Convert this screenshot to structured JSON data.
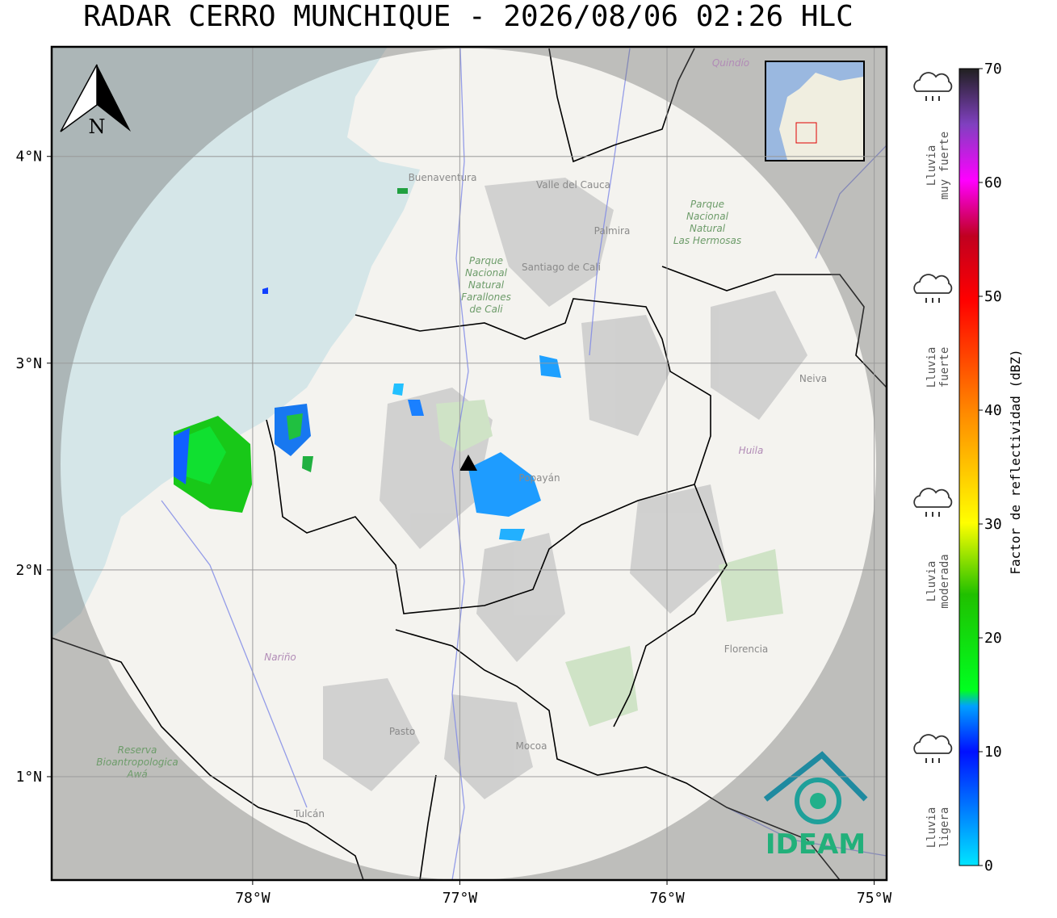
{
  "title": "RADAR CERRO MUNCHIQUE - 2026/08/06 02:26 HLC",
  "map": {
    "xlim": [
      -78.97,
      -74.94
    ],
    "ylim": [
      0.5,
      4.53
    ],
    "lon_ticks": [
      {
        "value": -78,
        "label": "78°W"
      },
      {
        "value": -77,
        "label": "77°W"
      },
      {
        "value": -76,
        "label": "76°W"
      },
      {
        "value": -75,
        "label": "75°W"
      }
    ],
    "lat_ticks": [
      {
        "value": 1,
        "label": "1°N"
      },
      {
        "value": 2,
        "label": "2°N"
      },
      {
        "value": 3,
        "label": "3°N"
      },
      {
        "value": 4,
        "label": "4°N"
      }
    ],
    "north_label": "N",
    "places": [
      "Buenaventura",
      "Valle del Cauca",
      "Santiago de Cali",
      "Palmira",
      "Popayán",
      "Neiva",
      "Huila",
      "Nariño",
      "Pasto",
      "Mocoa",
      "Florencia",
      "Tulcán",
      "Quindío"
    ],
    "parks": [
      [
        "Parque",
        "Nacional",
        "Natural",
        "Farallones",
        "de Cali"
      ],
      [
        "Parque",
        "Nacional",
        "Natural",
        "Las Hermosas"
      ],
      [
        "Reserva",
        "Bioantropologica",
        "Awá"
      ]
    ],
    "logo": "IDEAM"
  },
  "colorbar": {
    "label": "Factor de reflectividad (dBZ)",
    "lim": [
      0,
      70
    ],
    "ticks": [
      0,
      10,
      20,
      30,
      40,
      50,
      60,
      70
    ]
  },
  "rain_legend": [
    {
      "lines": [
        "Lluvia",
        "muy fuerte"
      ]
    },
    {
      "lines": [
        "Lluvia",
        "fuerte"
      ]
    },
    {
      "lines": [
        "Lluvia",
        "moderada"
      ]
    },
    {
      "lines": [
        "Lluvia",
        "ligera"
      ]
    }
  ]
}
